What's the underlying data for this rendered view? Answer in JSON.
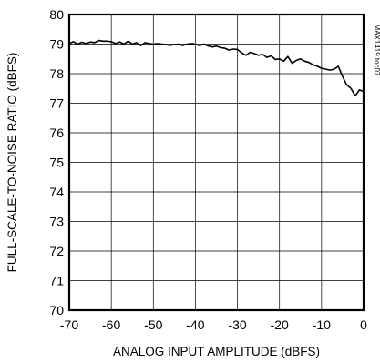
{
  "chart_data": {
    "type": "line",
    "title": "",
    "xlabel": "ANALOG INPUT AMPLITUDE (dBFS)",
    "ylabel": "FULL-SCALE-TO-NOISE RATIO (dBFS)",
    "annotation": "MAX1419 toc07",
    "xlim": [
      -70,
      0
    ],
    "ylim": [
      70,
      80
    ],
    "grid": true,
    "xticks": [
      -70,
      -60,
      -50,
      -40,
      -30,
      -20,
      -10,
      0
    ],
    "yticks": [
      70,
      71,
      72,
      73,
      74,
      75,
      76,
      77,
      78,
      79,
      80
    ],
    "xtick_labels": [
      "-70",
      "-60",
      "-50",
      "-40",
      "-30",
      "-20",
      "-10",
      "0"
    ],
    "ytick_labels": [
      "70",
      "71",
      "72",
      "73",
      "74",
      "75",
      "76",
      "77",
      "78",
      "79",
      "80"
    ],
    "series": [
      {
        "x": [
          -70,
          -69,
          -68,
          -67,
          -66,
          -65,
          -64,
          -63,
          -62,
          -61,
          -60,
          -59,
          -58,
          -57,
          -56,
          -55,
          -54,
          -53,
          -52,
          -51,
          -50,
          -49,
          -48,
          -47,
          -46,
          -45,
          -44,
          -43,
          -42,
          -41,
          -40,
          -39,
          -38,
          -37,
          -36,
          -35,
          -34,
          -33,
          -32,
          -31,
          -30,
          -29,
          -28,
          -27,
          -26,
          -25,
          -24,
          -23,
          -22,
          -21,
          -20,
          -19,
          -18,
          -17,
          -16,
          -15,
          -14,
          -13,
          -12,
          -11,
          -10,
          -9,
          -8,
          -7,
          -6,
          -5,
          -4,
          -3,
          -2,
          -1,
          0
        ],
        "y": [
          79.02,
          79.08,
          79.0,
          79.06,
          79.02,
          79.07,
          79.05,
          79.12,
          79.1,
          79.1,
          79.08,
          79.02,
          79.07,
          79.0,
          79.1,
          79.0,
          79.05,
          78.95,
          79.05,
          79.02,
          79.0,
          79.02,
          79.0,
          78.98,
          78.96,
          78.98,
          79.0,
          78.95,
          79.0,
          79.02,
          79.0,
          78.95,
          79.0,
          78.94,
          78.9,
          78.93,
          78.88,
          78.86,
          78.8,
          78.83,
          78.82,
          78.7,
          78.62,
          78.72,
          78.68,
          78.62,
          78.65,
          78.55,
          78.6,
          78.48,
          78.5,
          78.42,
          78.58,
          78.35,
          78.45,
          78.5,
          78.42,
          78.38,
          78.3,
          78.25,
          78.18,
          78.15,
          78.12,
          78.15,
          78.25,
          77.9,
          77.62,
          77.5,
          77.25,
          77.45,
          77.4
        ]
      }
    ]
  }
}
